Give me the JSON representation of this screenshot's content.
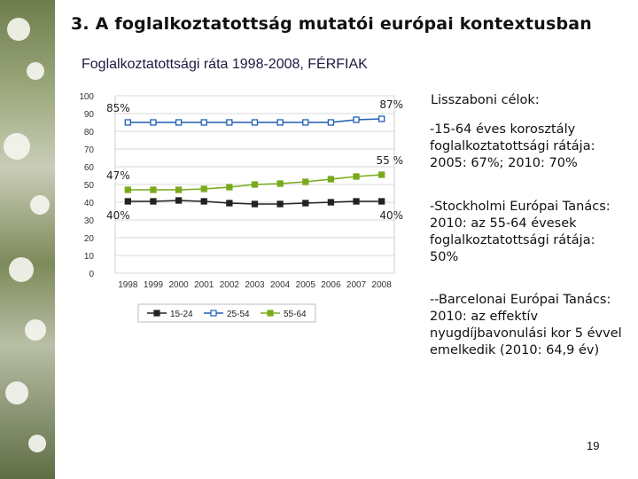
{
  "slide": {
    "title": "3. A foglalkoztatottság mutatói európai kontextusban",
    "page_number": "19"
  },
  "side_panel": {
    "heading": "Lisszaboni célok:",
    "goals": [
      "-15-64 éves korosztály foglalkoztatottsági rátája: 2005: 67%; 2010: 70%",
      "-Stockholmi Európai Tanács: 2010: az 55-64 évesek foglalkoztatottsági rátája: 50%",
      "--Barcelonai Európai Tanács: 2010: az effektív nyugdíjbavonulási kor 5 évvel emelkedik (2010: 64,9 év)"
    ]
  },
  "chart_data": {
    "type": "line",
    "title": "Foglalkoztatottsági ráta 1998-2008, FÉRFIAK",
    "x": [
      "1998",
      "1999",
      "2000",
      "2001",
      "2002",
      "2003",
      "2004",
      "2005",
      "2006",
      "2007",
      "2008"
    ],
    "ylim": [
      0,
      100
    ],
    "yticks": [
      "0",
      "10",
      "20",
      "30",
      "40",
      "50",
      "60",
      "70",
      "80",
      "90",
      "100"
    ],
    "grid": true,
    "legend_position": "bottom",
    "series": [
      {
        "name": "15-24",
        "color": "#222222",
        "marker": "square-filled",
        "values": [
          40.5,
          40.5,
          41,
          40.5,
          39.5,
          39,
          39,
          39.5,
          40,
          40.5,
          40.5
        ]
      },
      {
        "name": "25-54",
        "color": "#1f5fb4",
        "marker": "square-open",
        "values": [
          85,
          85,
          85,
          85,
          85,
          85,
          85,
          85,
          85,
          86.5,
          87
        ]
      },
      {
        "name": "55-64",
        "color": "#7aaa1c",
        "marker": "square-filled",
        "values": [
          47,
          47,
          47,
          47.5,
          48.5,
          50,
          50.5,
          51.5,
          53,
          54.5,
          55.5
        ]
      }
    ],
    "annotations": [
      {
        "text": "85%",
        "series": "25-54",
        "anchor": "start"
      },
      {
        "text": "87%",
        "series": "25-54",
        "anchor": "end"
      },
      {
        "text": "47%",
        "series": "55-64",
        "anchor": "start"
      },
      {
        "text": "55 %",
        "series": "55-64",
        "anchor": "end"
      },
      {
        "text": "40%",
        "series": "15-24",
        "anchor": "start"
      },
      {
        "text": "40%",
        "series": "15-24",
        "anchor": "end"
      }
    ]
  }
}
